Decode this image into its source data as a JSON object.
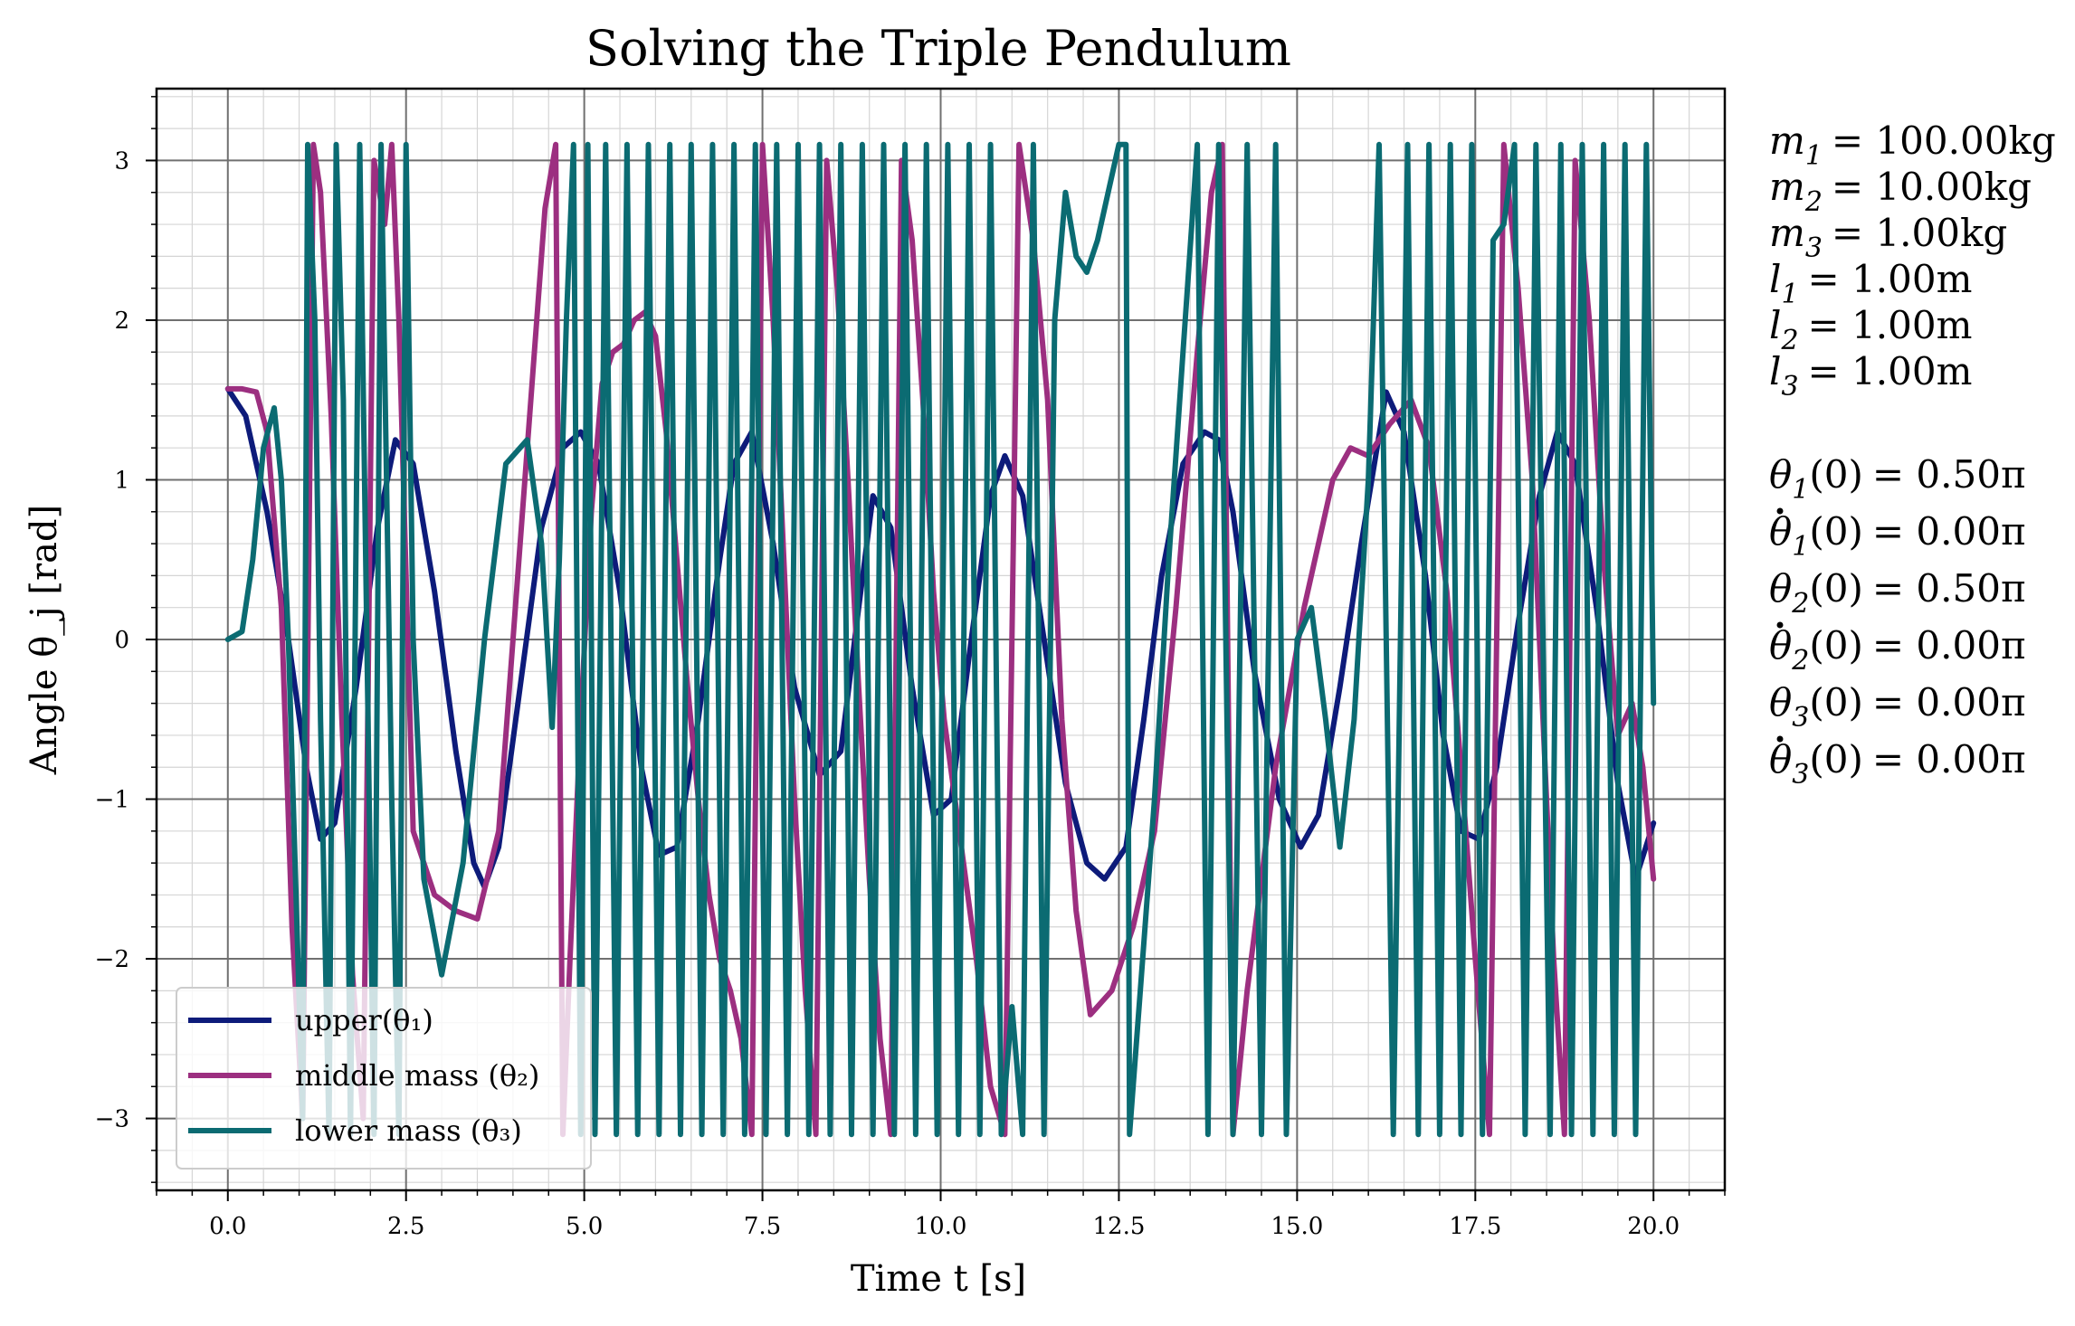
{
  "chart_data": {
    "type": "line",
    "title": "Solving the Triple Pendulum",
    "xlabel": "Time t [s]",
    "ylabel": "Angle θ_j [rad]",
    "xlim": [
      -1.0,
      21.0
    ],
    "ylim": [
      -3.45,
      3.45
    ],
    "xticks": [
      0.0,
      2.5,
      5.0,
      7.5,
      10.0,
      12.5,
      15.0,
      17.5,
      20.0
    ],
    "xtick_labels": [
      "0.0",
      "2.5",
      "5.0",
      "7.5",
      "10.0",
      "12.5",
      "15.0",
      "17.5",
      "20.0"
    ],
    "yticks": [
      -3,
      -2,
      -1,
      0,
      1,
      2,
      3
    ],
    "ytick_labels": [
      "−3",
      "−2",
      "−1",
      "0",
      "1",
      "2",
      "3"
    ],
    "grid": "major and minor",
    "legend": "lower-left",
    "series": [
      {
        "name": "upper(θ₁)",
        "color": "#0d1b7a",
        "x": [
          0.0,
          0.25,
          0.55,
          0.85,
          1.1,
          1.3,
          1.5,
          1.8,
          2.1,
          2.35,
          2.6,
          2.9,
          3.2,
          3.45,
          3.6,
          3.8,
          4.1,
          4.4,
          4.7,
          4.95,
          5.2,
          5.5,
          5.8,
          6.05,
          6.3,
          6.6,
          6.9,
          7.1,
          7.35,
          7.65,
          7.95,
          8.3,
          8.6,
          8.85,
          9.05,
          9.3,
          9.6,
          9.9,
          10.15,
          10.4,
          10.7,
          10.9,
          11.15,
          11.45,
          11.75,
          12.05,
          12.3,
          12.6,
          12.85,
          13.1,
          13.4,
          13.7,
          13.9,
          14.1,
          14.4,
          14.75,
          15.05,
          15.3,
          15.6,
          15.9,
          16.25,
          16.5,
          16.8,
          17.05,
          17.3,
          17.55,
          17.8,
          18.1,
          18.4,
          18.65,
          18.9,
          19.2,
          19.5,
          19.75,
          20.0
        ],
        "y": [
          1.57,
          1.4,
          0.8,
          0.0,
          -0.8,
          -1.25,
          -1.15,
          -0.3,
          0.7,
          1.25,
          1.1,
          0.3,
          -0.7,
          -1.4,
          -1.55,
          -1.3,
          -0.3,
          0.7,
          1.2,
          1.3,
          1.1,
          0.3,
          -0.8,
          -1.35,
          -1.3,
          -0.5,
          0.5,
          1.1,
          1.3,
          0.6,
          -0.3,
          -0.85,
          -0.7,
          0.2,
          0.9,
          0.7,
          -0.3,
          -1.1,
          -1.0,
          -0.1,
          0.9,
          1.15,
          0.9,
          0.0,
          -0.9,
          -1.4,
          -1.5,
          -1.3,
          -0.5,
          0.4,
          1.1,
          1.3,
          1.25,
          0.8,
          -0.2,
          -1.0,
          -1.3,
          -1.1,
          -0.3,
          0.6,
          1.55,
          1.3,
          0.4,
          -0.6,
          -1.2,
          -1.25,
          -0.8,
          0.1,
          0.9,
          1.3,
          1.1,
          0.2,
          -0.9,
          -1.5,
          -1.15
        ]
      },
      {
        "name": "middle mass (θ₂)",
        "color": "#9c2f80",
        "x": [
          0.0,
          0.2,
          0.4,
          0.55,
          0.75,
          0.9,
          1.05,
          1.2,
          1.3,
          1.45,
          1.6,
          1.75,
          1.9,
          2.05,
          2.2,
          2.3,
          2.4,
          2.6,
          2.9,
          3.2,
          3.5,
          3.8,
          4.0,
          4.25,
          4.45,
          4.6,
          4.7,
          4.8,
          4.95,
          5.1,
          5.25,
          5.4,
          5.55,
          5.7,
          5.85,
          6.0,
          6.15,
          6.3,
          6.45,
          6.6,
          6.75,
          6.9,
          7.05,
          7.2,
          7.35,
          7.5,
          7.65,
          7.8,
          7.95,
          8.1,
          8.25,
          8.4,
          8.55,
          8.7,
          8.85,
          9.0,
          9.15,
          9.3,
          9.45,
          9.6,
          9.75,
          9.9,
          10.05,
          10.2,
          10.35,
          10.5,
          10.7,
          10.9,
          11.1,
          11.3,
          11.5,
          11.7,
          11.9,
          12.1,
          12.4,
          12.7,
          13.0,
          13.3,
          13.6,
          13.8,
          13.95,
          14.1,
          14.3,
          14.5,
          14.7,
          14.9,
          15.1,
          15.3,
          15.5,
          15.75,
          16.0,
          16.3,
          16.6,
          16.85,
          17.1,
          17.3,
          17.5,
          17.7,
          17.9,
          18.1,
          18.3,
          18.45,
          18.6,
          18.75,
          18.9,
          19.1,
          19.3,
          19.5,
          19.7,
          19.85,
          20.0
        ],
        "y": [
          1.57,
          1.57,
          1.55,
          1.3,
          0.2,
          -1.8,
          -3.0,
          3.1,
          2.8,
          1.4,
          -0.5,
          -2.1,
          -3.0,
          3.0,
          2.6,
          3.1,
          2.0,
          -1.2,
          -1.6,
          -1.7,
          -1.75,
          -1.2,
          0.0,
          1.5,
          2.7,
          3.1,
          -3.1,
          -2.0,
          -0.5,
          0.8,
          1.6,
          1.8,
          1.85,
          2.0,
          2.05,
          1.9,
          1.3,
          0.5,
          -0.3,
          -1.0,
          -1.6,
          -2.0,
          -2.2,
          -2.5,
          -3.1,
          3.1,
          2.0,
          0.5,
          -1.0,
          -2.2,
          -3.1,
          3.0,
          2.2,
          1.0,
          -0.3,
          -1.5,
          -2.5,
          -3.1,
          3.0,
          2.5,
          1.5,
          0.3,
          -0.5,
          -1.0,
          -1.5,
          -2.0,
          -2.8,
          -3.1,
          3.1,
          2.5,
          1.5,
          -0.5,
          -1.7,
          -2.35,
          -2.2,
          -1.8,
          -1.2,
          0.2,
          1.8,
          2.8,
          3.1,
          -3.1,
          -2.2,
          -1.5,
          -0.8,
          -0.3,
          0.2,
          0.6,
          1.0,
          1.2,
          1.15,
          1.35,
          1.5,
          1.2,
          0.3,
          -0.8,
          -2.0,
          -3.1,
          3.1,
          2.2,
          1.0,
          -0.5,
          -2.0,
          -3.1,
          3.0,
          2.0,
          0.5,
          -0.6,
          -0.4,
          -0.8,
          -1.5
        ]
      },
      {
        "name": "lower mass (θ₃)",
        "color": "#0b6b72",
        "x": [
          0.0,
          0.2,
          0.35,
          0.5,
          0.65,
          0.75,
          0.85,
          0.95,
          1.05,
          1.12,
          1.22,
          1.3,
          1.42,
          1.52,
          1.62,
          1.72,
          1.85,
          1.95,
          2.05,
          2.15,
          2.3,
          2.4,
          2.5,
          2.6,
          2.75,
          3.0,
          3.3,
          3.6,
          3.9,
          4.2,
          4.4,
          4.55,
          4.65,
          4.75,
          4.85,
          4.95,
          5.05,
          5.15,
          5.3,
          5.45,
          5.6,
          5.75,
          5.9,
          6.05,
          6.2,
          6.35,
          6.5,
          6.65,
          6.8,
          6.95,
          7.1,
          7.25,
          7.4,
          7.55,
          7.7,
          7.85,
          8.0,
          8.15,
          8.3,
          8.45,
          8.6,
          8.75,
          8.9,
          9.05,
          9.2,
          9.35,
          9.5,
          9.65,
          9.8,
          9.95,
          10.1,
          10.25,
          10.4,
          10.55,
          10.7,
          10.85,
          11.0,
          11.15,
          11.3,
          11.45,
          11.6,
          11.75,
          11.9,
          12.05,
          12.2,
          12.35,
          12.5,
          12.6,
          12.65,
          12.8,
          13.0,
          13.2,
          13.4,
          13.6,
          13.75,
          13.9,
          14.1,
          14.3,
          14.5,
          14.7,
          14.85,
          15.0,
          15.2,
          15.4,
          15.6,
          15.8,
          16.0,
          16.15,
          16.35,
          16.55,
          16.7,
          16.85,
          17.0,
          17.15,
          17.3,
          17.45,
          17.6,
          17.75,
          17.9,
          18.05,
          18.2,
          18.35,
          18.55,
          18.7,
          18.85,
          19.0,
          19.15,
          19.3,
          19.45,
          19.6,
          19.75,
          19.9,
          20.0
        ],
        "y": [
          0.0,
          0.05,
          0.5,
          1.2,
          1.45,
          1.0,
          0.0,
          -1.5,
          -3.0,
          3.1,
          2.0,
          -0.5,
          -3.1,
          3.1,
          1.5,
          -3.1,
          3.1,
          0.0,
          -3.1,
          3.1,
          -1.0,
          -3.1,
          3.1,
          0.0,
          -1.5,
          -2.1,
          -1.4,
          0.0,
          1.1,
          1.25,
          0.6,
          -0.55,
          0.5,
          2.0,
          3.1,
          -3.1,
          3.1,
          -3.1,
          3.1,
          -3.1,
          3.1,
          -3.1,
          3.1,
          -3.1,
          3.1,
          -3.1,
          3.1,
          -3.1,
          3.1,
          -3.1,
          3.1,
          -3.1,
          3.1,
          -3.1,
          3.1,
          -3.1,
          3.1,
          -3.1,
          3.1,
          -3.1,
          3.1,
          -3.1,
          3.1,
          -3.1,
          3.1,
          -3.1,
          3.1,
          -3.1,
          3.1,
          -3.1,
          3.1,
          -3.1,
          3.1,
          -3.1,
          3.1,
          -3.1,
          -2.3,
          -3.1,
          3.1,
          -3.1,
          2.0,
          2.8,
          2.4,
          2.3,
          2.5,
          2.8,
          3.1,
          3.1,
          -3.1,
          -2.2,
          -1.0,
          0.5,
          1.8,
          3.1,
          -3.1,
          3.1,
          -3.1,
          3.1,
          -3.1,
          3.1,
          -3.1,
          0.0,
          0.2,
          -0.5,
          -1.3,
          -0.5,
          1.0,
          3.1,
          -3.1,
          3.1,
          -3.1,
          3.1,
          -3.1,
          3.1,
          -3.1,
          3.1,
          -3.1,
          2.5,
          2.6,
          3.1,
          -3.1,
          3.1,
          -3.1,
          3.1,
          -3.1,
          3.1,
          -3.1,
          3.1,
          -3.1,
          3.1,
          -3.1,
          3.1,
          -0.4
        ]
      }
    ]
  },
  "parameters": {
    "masses": [
      {
        "sym": "m",
        "sub": "1",
        "value": "= 100.00kg"
      },
      {
        "sym": "m",
        "sub": "2",
        "value": "= 10.00kg"
      },
      {
        "sym": "m",
        "sub": "3",
        "value": "= 1.00kg"
      }
    ],
    "lengths": [
      {
        "sym": "l",
        "sub": "1",
        "value": "= 1.00m"
      },
      {
        "sym": "l",
        "sub": "2",
        "value": "= 1.00m"
      },
      {
        "sym": "l",
        "sub": "3",
        "value": "= 1.00m"
      }
    ],
    "initial": [
      {
        "sym": "θ",
        "dot": false,
        "sub": "1",
        "arg": "(0)",
        "value": "= 0.50π"
      },
      {
        "sym": "θ",
        "dot": true,
        "sub": "1",
        "arg": "(0)",
        "value": "= 0.00π"
      },
      {
        "sym": "θ",
        "dot": false,
        "sub": "2",
        "arg": "(0)",
        "value": "= 0.50π"
      },
      {
        "sym": "θ",
        "dot": true,
        "sub": "2",
        "arg": "(0)",
        "value": "= 0.00π"
      },
      {
        "sym": "θ",
        "dot": false,
        "sub": "3",
        "arg": "(0)",
        "value": "= 0.00π"
      },
      {
        "sym": "θ",
        "dot": true,
        "sub": "3",
        "arg": "(0)",
        "value": "= 0.00π"
      }
    ]
  }
}
